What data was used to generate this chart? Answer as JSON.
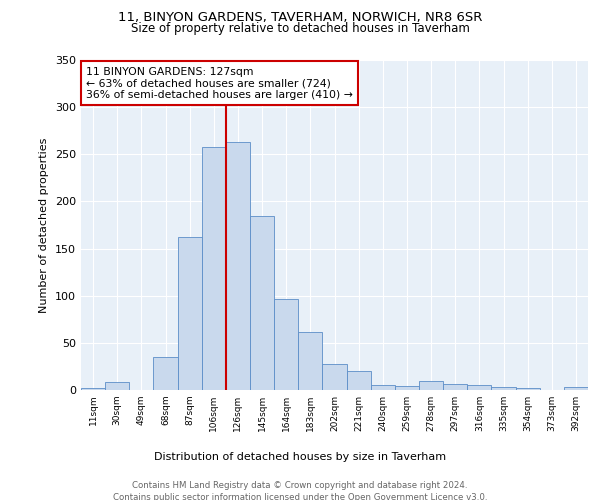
{
  "title1": "11, BINYON GARDENS, TAVERHAM, NORWICH, NR8 6SR",
  "title2": "Size of property relative to detached houses in Taverham",
  "xlabel": "Distribution of detached houses by size in Taverham",
  "ylabel": "Number of detached properties",
  "bar_color": "#c9d9ed",
  "bar_edge_color": "#5b8dc8",
  "categories": [
    "11sqm",
    "30sqm",
    "49sqm",
    "68sqm",
    "87sqm",
    "106sqm",
    "126sqm",
    "145sqm",
    "164sqm",
    "183sqm",
    "202sqm",
    "221sqm",
    "240sqm",
    "259sqm",
    "278sqm",
    "297sqm",
    "316sqm",
    "335sqm",
    "354sqm",
    "373sqm",
    "392sqm"
  ],
  "values": [
    2,
    8,
    0,
    35,
    162,
    258,
    263,
    185,
    96,
    62,
    28,
    20,
    5,
    4,
    10,
    6,
    5,
    3,
    2,
    0,
    3
  ],
  "vline_color": "#cc0000",
  "vline_x": 6.5,
  "annotation_text": "11 BINYON GARDENS: 127sqm\n← 63% of detached houses are smaller (724)\n36% of semi-detached houses are larger (410) →",
  "ylim": [
    0,
    350
  ],
  "yticks": [
    0,
    50,
    100,
    150,
    200,
    250,
    300,
    350
  ],
  "bg_color": "#e8f0f8",
  "grid_color": "#ffffff",
  "footnote": "Contains HM Land Registry data © Crown copyright and database right 2024.\nContains public sector information licensed under the Open Government Licence v3.0."
}
